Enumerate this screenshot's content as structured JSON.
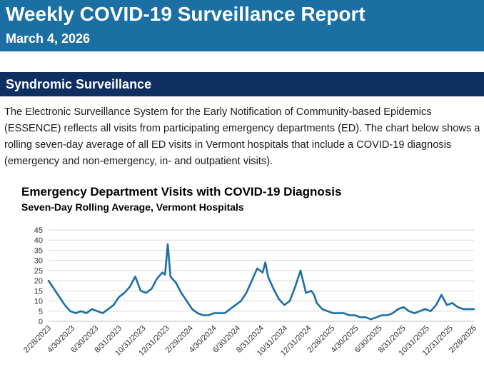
{
  "header": {
    "title": "Weekly COVID-19 Surveillance Report",
    "date": "March 4, 2026",
    "background_color": "#1b6fa3"
  },
  "section": {
    "title": "Syndromic Surveillance",
    "background_color": "#0f2f60",
    "body": "The Electronic Surveillance System for the Early Notification of Community-based Epidemics (ESSENCE) reflects all visits from participating emergency departments (ED). The chart below shows a rolling seven-day average of all ED visits in Vermont hospitals that include a COVID-19 diagnosis (emergency and non-emergency, in- and outpatient visits)."
  },
  "chart_data": {
    "type": "line",
    "title": "Emergency Department Visits with COVID-19 Diagnosis",
    "subtitle": "Seven-Day Rolling Average, Vermont Hospitals",
    "xlabel": "",
    "ylabel": "",
    "ylim": [
      0,
      45
    ],
    "yticks": [
      0,
      5,
      10,
      15,
      20,
      25,
      30,
      35,
      40,
      45
    ],
    "grid": true,
    "legend": "none",
    "line_color": "#1b6fa3",
    "xticks": [
      "2/28/2023",
      "4/30/2023",
      "6/30/2023",
      "8/31/2023",
      "10/31/2023",
      "12/31/2023",
      "2/29/2024",
      "4/30/2024",
      "6/30/2024",
      "8/31/2024",
      "10/31/2024",
      "12/31/2024",
      "2/28/2025",
      "4/30/2025",
      "6/30/2025",
      "8/31/2025",
      "10/31/2025",
      "12/31/2025",
      "2/28/2026"
    ],
    "series": [
      {
        "name": "",
        "x": [
          "2023-02-28",
          "2023-03-14",
          "2023-03-28",
          "2023-04-11",
          "2023-04-25",
          "2023-05-09",
          "2023-05-23",
          "2023-06-06",
          "2023-06-20",
          "2023-07-04",
          "2023-07-18",
          "2023-08-01",
          "2023-08-15",
          "2023-08-29",
          "2023-09-12",
          "2023-09-26",
          "2023-10-10",
          "2023-10-24",
          "2023-11-07",
          "2023-11-21",
          "2023-12-05",
          "2023-12-19",
          "2023-12-26",
          "2024-01-02",
          "2024-01-09",
          "2024-01-23",
          "2024-02-06",
          "2024-02-20",
          "2024-03-05",
          "2024-03-19",
          "2024-04-02",
          "2024-04-16",
          "2024-04-30",
          "2024-05-14",
          "2024-05-28",
          "2024-06-11",
          "2024-06-25",
          "2024-07-09",
          "2024-07-23",
          "2024-08-06",
          "2024-08-20",
          "2024-09-03",
          "2024-09-10",
          "2024-09-17",
          "2024-10-01",
          "2024-10-15",
          "2024-10-29",
          "2024-11-12",
          "2024-11-26",
          "2024-12-10",
          "2024-12-24",
          "2025-01-07",
          "2025-01-14",
          "2025-01-21",
          "2025-02-04",
          "2025-02-18",
          "2025-03-04",
          "2025-03-18",
          "2025-04-01",
          "2025-04-15",
          "2025-04-29",
          "2025-05-13",
          "2025-05-27",
          "2025-06-10",
          "2025-06-24",
          "2025-07-08",
          "2025-07-22",
          "2025-08-05",
          "2025-08-19",
          "2025-09-02",
          "2025-09-16",
          "2025-09-30",
          "2025-10-14",
          "2025-10-28",
          "2025-11-11",
          "2025-11-25",
          "2025-12-09",
          "2025-12-23",
          "2026-01-06",
          "2026-01-20",
          "2026-02-03",
          "2026-02-17",
          "2026-03-03"
        ],
        "y": [
          20,
          16,
          12,
          8,
          5,
          4,
          5,
          4,
          6,
          5,
          4,
          6,
          8,
          12,
          14,
          17,
          22,
          15,
          14,
          16,
          21,
          24,
          23,
          38,
          22,
          19,
          14,
          10,
          6,
          4,
          3,
          3,
          4,
          4,
          4,
          6,
          8,
          10,
          14,
          20,
          26,
          24,
          29,
          22,
          16,
          11,
          8,
          10,
          17,
          25,
          14,
          15,
          13,
          9,
          6,
          5,
          4,
          4,
          4,
          3,
          3,
          2,
          2,
          1,
          2,
          3,
          3,
          4,
          6,
          7,
          5,
          4,
          5,
          6,
          5,
          8,
          13,
          8,
          9,
          7,
          6,
          6,
          6
        ]
      }
    ]
  }
}
